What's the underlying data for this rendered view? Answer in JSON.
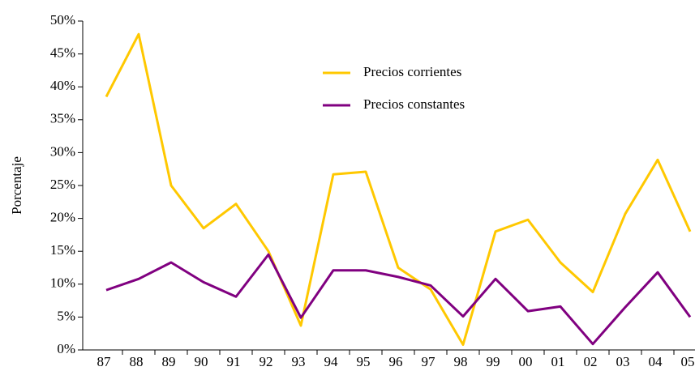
{
  "chart_data": {
    "type": "line",
    "ylabel": "Porcentaje",
    "categories": [
      "87",
      "88",
      "89",
      "90",
      "91",
      "92",
      "93",
      "94",
      "95",
      "96",
      "97",
      "98",
      "99",
      "00",
      "01",
      "02",
      "03",
      "04",
      "05"
    ],
    "series": [
      {
        "name": "Precios corrientes",
        "color": "#ffc800",
        "values": [
          38.5,
          48,
          25,
          18.5,
          22.2,
          15,
          3.7,
          26.7,
          27.1,
          12.5,
          9.2,
          0.8,
          18,
          19.8,
          13.3,
          8.8,
          20.7,
          28.9,
          18
        ]
      },
      {
        "name": "Precios constantes",
        "color": "#800080",
        "values": [
          9.1,
          10.8,
          13.3,
          10.3,
          8.1,
          14.5,
          4.9,
          12.1,
          12.1,
          11.1,
          9.8,
          5.1,
          10.8,
          5.9,
          6.6,
          0.9,
          6.5,
          11.8,
          5
        ]
      }
    ],
    "ylim": [
      0,
      50
    ],
    "yticks": [
      {
        "value": 0,
        "label": "0%"
      },
      {
        "value": 5,
        "label": "5%"
      },
      {
        "value": 10,
        "label": "10%"
      },
      {
        "value": 15,
        "label": "15%"
      },
      {
        "value": 20,
        "label": "20%"
      },
      {
        "value": 25,
        "label": "25%"
      },
      {
        "value": 30,
        "label": "30%"
      },
      {
        "value": 35,
        "label": "35%"
      },
      {
        "value": 40,
        "label": "40%"
      },
      {
        "value": 45,
        "label": "45%"
      },
      {
        "value": 50,
        "label": "50%"
      }
    ],
    "legend": "upper center"
  }
}
